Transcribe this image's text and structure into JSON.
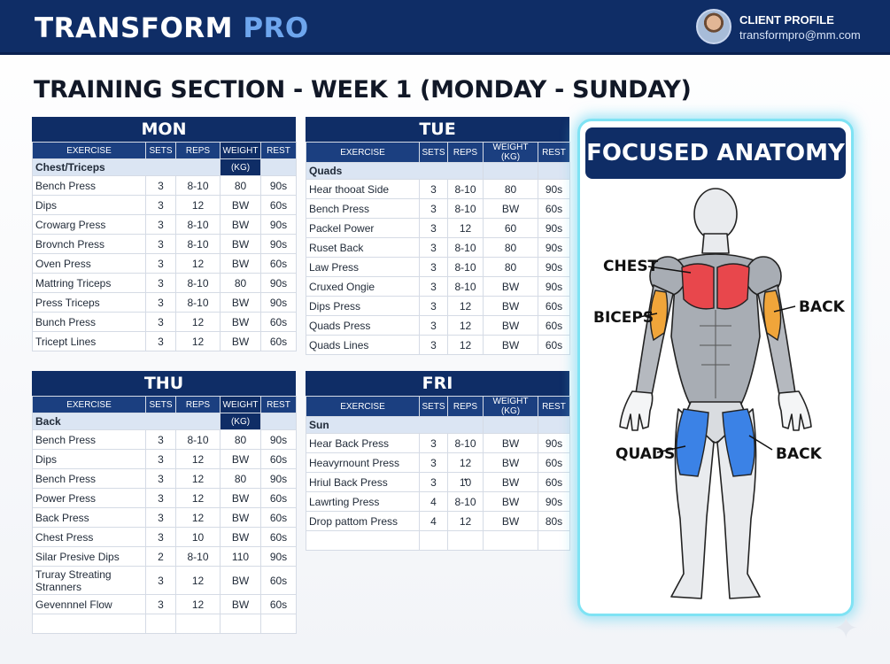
{
  "header": {
    "brand_main": "TRANSFORM",
    "brand_accent": "PRO",
    "profile_label": "CLIENT PROFILE",
    "profile_email": "transformpro@mm.com"
  },
  "page_title": "TRAINING SECTION - WEEK 1 (MONDAY - SUNDAY)",
  "columns": {
    "exercise": "EXERCISE",
    "sets": "SETS",
    "reps": "REPS",
    "weight": "WEIGHT",
    "weight_unit": "(KG)",
    "weight_full": "WEIGHT (KG)",
    "rest": "REST"
  },
  "days": {
    "mon": {
      "name": "MON",
      "group": "Chest/Triceps",
      "rows": [
        {
          "exercise": "Bench Press",
          "sets": "3",
          "reps": "8-10",
          "weight": "80",
          "rest": "90s"
        },
        {
          "exercise": "Dips",
          "sets": "3",
          "reps": "12",
          "weight": "BW",
          "rest": "60s"
        },
        {
          "exercise": "Crowarg Press",
          "sets": "3",
          "reps": "8-10",
          "weight": "BW",
          "rest": "90s"
        },
        {
          "exercise": "Brovnch Press",
          "sets": "3",
          "reps": "8-10",
          "weight": "BW",
          "rest": "90s"
        },
        {
          "exercise": "Oven Press",
          "sets": "3",
          "reps": "12",
          "weight": "BW",
          "rest": "60s"
        },
        {
          "exercise": "Mattring Triceps",
          "sets": "3",
          "reps": "8-10",
          "weight": "80",
          "rest": "90s"
        },
        {
          "exercise": "Press Triceps",
          "sets": "3",
          "reps": "8-10",
          "weight": "BW",
          "rest": "90s"
        },
        {
          "exercise": "Bunch Press",
          "sets": "3",
          "reps": "12",
          "weight": "BW",
          "rest": "60s"
        },
        {
          "exercise": "Tricept Lines",
          "sets": "3",
          "reps": "12",
          "weight": "BW",
          "rest": "60s"
        }
      ]
    },
    "tue": {
      "name": "TUE",
      "group": "Quads",
      "rows": [
        {
          "exercise": "Hear thooat Side",
          "sets": "3",
          "reps": "8-10",
          "weight": "80",
          "rest": "90s"
        },
        {
          "exercise": "Bench Press",
          "sets": "3",
          "reps": "8-10",
          "weight": "BW",
          "rest": "60s"
        },
        {
          "exercise": "Packel Power",
          "sets": "3",
          "reps": "12",
          "weight": "60",
          "rest": "90s"
        },
        {
          "exercise": "Ruset Back",
          "sets": "3",
          "reps": "8-10",
          "weight": "80",
          "rest": "90s"
        },
        {
          "exercise": "Law Press",
          "sets": "3",
          "reps": "8-10",
          "weight": "80",
          "rest": "90s"
        },
        {
          "exercise": "Cruxed Ongie",
          "sets": "3",
          "reps": "8-10",
          "weight": "BW",
          "rest": "90s"
        },
        {
          "exercise": "Dips Press",
          "sets": "3",
          "reps": "12",
          "weight": "BW",
          "rest": "60s"
        },
        {
          "exercise": "Quads Press",
          "sets": "3",
          "reps": "12",
          "weight": "BW",
          "rest": "60s"
        },
        {
          "exercise": "Quads Lines",
          "sets": "3",
          "reps": "12",
          "weight": "BW",
          "rest": "60s"
        }
      ]
    },
    "thu": {
      "name": "THU",
      "group": "Back",
      "rows": [
        {
          "exercise": "Bench Press",
          "sets": "3",
          "reps": "8-10",
          "weight": "80",
          "rest": "90s"
        },
        {
          "exercise": "Dips",
          "sets": "3",
          "reps": "12",
          "weight": "BW",
          "rest": "60s"
        },
        {
          "exercise": "Bench Press",
          "sets": "3",
          "reps": "12",
          "weight": "80",
          "rest": "90s"
        },
        {
          "exercise": "Power Press",
          "sets": "3",
          "reps": "12",
          "weight": "BW",
          "rest": "60s"
        },
        {
          "exercise": "Back Press",
          "sets": "3",
          "reps": "12",
          "weight": "BW",
          "rest": "60s"
        },
        {
          "exercise": "Chest Press",
          "sets": "3",
          "reps": "10",
          "weight": "BW",
          "rest": "60s"
        },
        {
          "exercise": "Silar Presive Dips",
          "sets": "2",
          "reps": "8-10",
          "weight": "110",
          "rest": "90s"
        },
        {
          "exercise": "Truray Streating Stranners",
          "sets": "3",
          "reps": "12",
          "weight": "BW",
          "rest": "60s"
        },
        {
          "exercise": "Gevennnel Flow",
          "sets": "3",
          "reps": "12",
          "weight": "BW",
          "rest": "60s"
        }
      ]
    },
    "fri": {
      "name": "FRI",
      "group": "Sun",
      "rows": [
        {
          "exercise": "Hear Back Press",
          "sets": "3",
          "reps": "8-10",
          "weight": "BW",
          "rest": "90s"
        },
        {
          "exercise": "Heavyrnount Press",
          "sets": "3",
          "reps": "12",
          "weight": "BW",
          "rest": "60s"
        },
        {
          "exercise": "Hriul Back Press",
          "sets": "3",
          "reps": "1̄̒0",
          "weight": "BW",
          "rest": "60s"
        },
        {
          "exercise": "Lawrting Press",
          "sets": "4",
          "reps": "8-10",
          "weight": "BW",
          "rest": "90s"
        },
        {
          "exercise": "Drop pattom Press",
          "sets": "4",
          "reps": "12",
          "weight": "BW",
          "rest": "80s"
        }
      ]
    }
  },
  "anatomy": {
    "title": "FOCUSED ANATOMY",
    "labels": {
      "chest": "CHEST",
      "biceps": "BICEPS",
      "back_upper": "BACK",
      "quads": "QUADS",
      "back_lower": "BACK"
    },
    "colors": {
      "chest": "#e8474c",
      "biceps": "#f0a53a",
      "quads": "#3b82e6"
    }
  }
}
